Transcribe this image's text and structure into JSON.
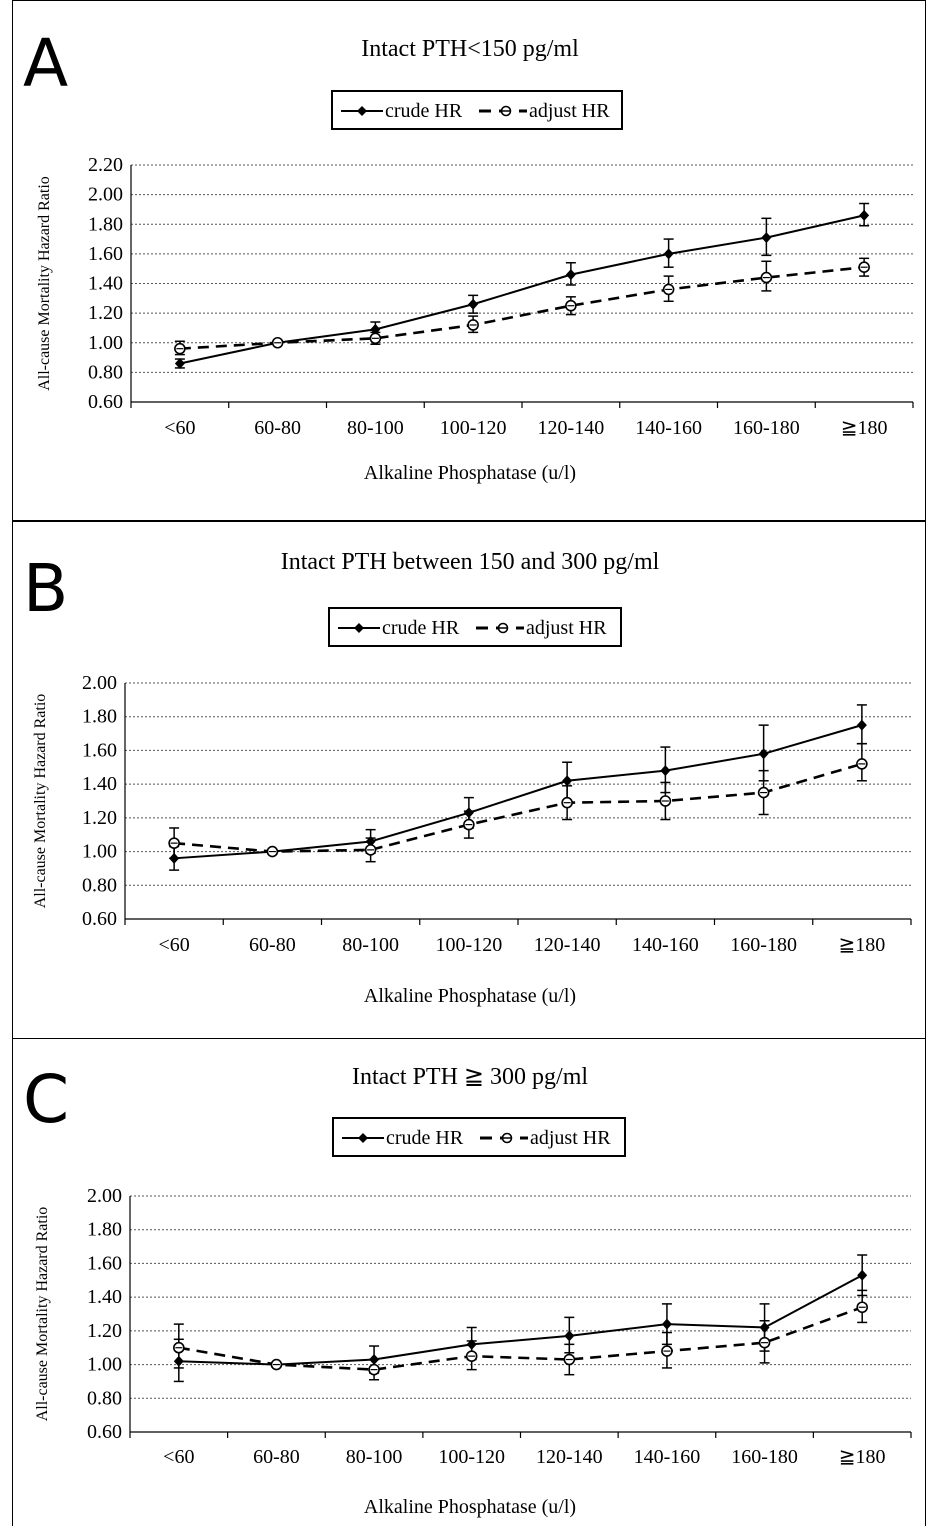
{
  "panel_letters": [
    "A",
    "B",
    "C"
  ],
  "legend": {
    "crude_label": "crude HR",
    "adjust_label": "adjust HR"
  },
  "colors": {
    "line": "#000000",
    "grid": "#555555",
    "background": "#ffffff"
  },
  "chart_data": [
    {
      "type": "line",
      "title": "Intact PTH<150 pg/ml",
      "xlabel": "Alkaline Phosphatase (u/l)",
      "ylabel": "All-cause Mortality Hazard Ratio",
      "categories": [
        "<60",
        "60-80",
        "80-100",
        "100-120",
        "120-140",
        "140-160",
        "160-180",
        "≧180"
      ],
      "ylim": [
        0.6,
        2.2
      ],
      "yticks": [
        "0.60",
        "0.80",
        "1.00",
        "1.20",
        "1.40",
        "1.60",
        "1.80",
        "2.00",
        "2.20"
      ],
      "grid": true,
      "legend_position": "top-center",
      "series": [
        {
          "name": "crude HR",
          "style": "solid",
          "marker": "filled-diamond",
          "values": [
            0.86,
            1.0,
            1.09,
            1.26,
            1.46,
            1.6,
            1.71,
            1.86
          ],
          "lower": [
            0.83,
            1.0,
            1.04,
            1.2,
            1.39,
            1.51,
            1.59,
            1.79
          ],
          "upper": [
            0.89,
            1.0,
            1.14,
            1.32,
            1.54,
            1.7,
            1.84,
            1.94
          ]
        },
        {
          "name": "adjust HR",
          "style": "dashed",
          "marker": "open-circle",
          "values": [
            0.96,
            1.0,
            1.03,
            1.12,
            1.25,
            1.36,
            1.44,
            1.51
          ],
          "lower": [
            0.92,
            1.0,
            0.99,
            1.07,
            1.19,
            1.28,
            1.35,
            1.45
          ],
          "upper": [
            1.01,
            1.0,
            1.07,
            1.18,
            1.31,
            1.45,
            1.55,
            1.57
          ]
        }
      ]
    },
    {
      "type": "line",
      "title": "Intact PTH between 150 and 300 pg/ml",
      "xlabel": "Alkaline Phosphatase (u/l)",
      "ylabel": "All-cause Mortality Hazard Ratio",
      "categories": [
        "<60",
        "60-80",
        "80-100",
        "100-120",
        "120-140",
        "140-160",
        "160-180",
        "≧180"
      ],
      "ylim": [
        0.6,
        2.0
      ],
      "yticks": [
        "0.60",
        "0.80",
        "1.00",
        "1.20",
        "1.40",
        "1.60",
        "1.80",
        "2.00"
      ],
      "grid": true,
      "legend_position": "top-center",
      "series": [
        {
          "name": "crude HR",
          "style": "solid",
          "marker": "filled-diamond",
          "values": [
            0.96,
            1.0,
            1.06,
            1.23,
            1.42,
            1.48,
            1.58,
            1.75
          ],
          "lower": [
            0.89,
            1.0,
            0.99,
            1.14,
            1.28,
            1.35,
            1.42,
            1.64
          ],
          "upper": [
            1.03,
            1.0,
            1.13,
            1.32,
            1.53,
            1.62,
            1.75,
            1.87
          ]
        },
        {
          "name": "adjust HR",
          "style": "dashed",
          "marker": "open-circle",
          "values": [
            1.05,
            1.0,
            1.01,
            1.16,
            1.29,
            1.3,
            1.35,
            1.52
          ],
          "lower": [
            0.96,
            1.0,
            0.94,
            1.08,
            1.19,
            1.19,
            1.22,
            1.42
          ],
          "upper": [
            1.14,
            1.0,
            1.08,
            1.24,
            1.39,
            1.41,
            1.48,
            1.64
          ]
        }
      ]
    },
    {
      "type": "line",
      "title": "Intact PTH ≧ 300 pg/ml",
      "xlabel": "Alkaline Phosphatase (u/l)",
      "ylabel": "All-cause Mortality Hazard Ratio",
      "categories": [
        "<60",
        "60-80",
        "80-100",
        "100-120",
        "120-140",
        "140-160",
        "160-180",
        "≧180"
      ],
      "ylim": [
        0.6,
        2.0
      ],
      "yticks": [
        "0.60",
        "0.80",
        "1.00",
        "1.20",
        "1.40",
        "1.60",
        "1.80",
        "2.00"
      ],
      "grid": true,
      "legend_position": "top-center",
      "series": [
        {
          "name": "crude HR",
          "style": "solid",
          "marker": "filled-diamond",
          "values": [
            1.02,
            1.0,
            1.03,
            1.12,
            1.17,
            1.24,
            1.22,
            1.53
          ],
          "lower": [
            0.9,
            1.0,
            0.95,
            1.03,
            1.07,
            1.12,
            1.08,
            1.41
          ],
          "upper": [
            1.15,
            1.0,
            1.11,
            1.22,
            1.28,
            1.36,
            1.36,
            1.65
          ]
        },
        {
          "name": "adjust HR",
          "style": "dashed",
          "marker": "open-circle",
          "values": [
            1.1,
            1.0,
            0.97,
            1.05,
            1.03,
            1.08,
            1.13,
            1.34
          ],
          "lower": [
            0.98,
            1.0,
            0.91,
            0.97,
            0.94,
            0.98,
            1.01,
            1.25
          ],
          "upper": [
            1.24,
            1.0,
            1.03,
            1.14,
            1.12,
            1.19,
            1.26,
            1.44
          ]
        }
      ]
    }
  ]
}
